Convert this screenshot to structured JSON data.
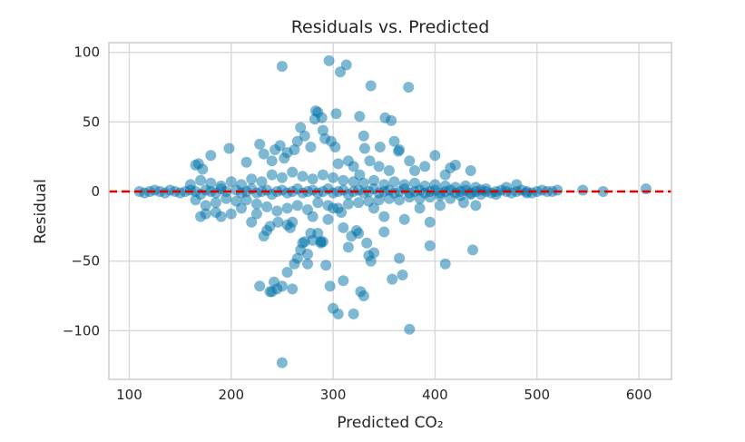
{
  "chart_data": {
    "type": "scatter",
    "title": "Residuals vs. Predicted",
    "xlabel": "Predicted CO₂",
    "ylabel": "Residual",
    "xlim": [
      80,
      632
    ],
    "ylim": [
      -135,
      107
    ],
    "xticks": [
      100,
      200,
      300,
      400,
      500,
      600
    ],
    "xtick_labels": [
      "100",
      "200",
      "300",
      "400",
      "500",
      "600"
    ],
    "yticks": [
      -100,
      -50,
      0,
      50,
      100
    ],
    "ytick_labels": [
      "−100",
      "−50",
      "0",
      "50",
      "100"
    ],
    "grid": true,
    "point_color": "#0072a8",
    "point_opacity": 0.5,
    "reference_line": {
      "y": 0,
      "color": "#e00000",
      "style": "dashed"
    },
    "points": [
      [
        110,
        0
      ],
      [
        115,
        -1
      ],
      [
        120,
        0
      ],
      [
        125,
        1
      ],
      [
        130,
        0
      ],
      [
        135,
        -1
      ],
      [
        140,
        1
      ],
      [
        145,
        0
      ],
      [
        150,
        -1
      ],
      [
        155,
        0
      ],
      [
        160,
        1
      ],
      [
        165,
        0
      ],
      [
        170,
        -2
      ],
      [
        175,
        1
      ],
      [
        180,
        0
      ],
      [
        185,
        -1
      ],
      [
        190,
        2
      ],
      [
        195,
        0
      ],
      [
        205,
        1
      ],
      [
        210,
        -1
      ],
      [
        215,
        0
      ],
      [
        220,
        2
      ],
      [
        225,
        -1
      ],
      [
        230,
        0
      ],
      [
        235,
        1
      ],
      [
        240,
        -2
      ],
      [
        245,
        0
      ],
      [
        250,
        1
      ],
      [
        255,
        -1
      ],
      [
        260,
        0
      ],
      [
        265,
        2
      ],
      [
        270,
        -1
      ],
      [
        275,
        0
      ],
      [
        280,
        1
      ],
      [
        285,
        -1
      ],
      [
        290,
        0
      ],
      [
        295,
        2
      ],
      [
        300,
        -1
      ],
      [
        305,
        0
      ],
      [
        310,
        1
      ],
      [
        315,
        -2
      ],
      [
        320,
        0
      ],
      [
        325,
        1
      ],
      [
        330,
        -1
      ],
      [
        335,
        0
      ],
      [
        340,
        2
      ],
      [
        345,
        -1
      ],
      [
        350,
        0
      ],
      [
        355,
        1
      ],
      [
        360,
        -1
      ],
      [
        365,
        0
      ],
      [
        370,
        2
      ],
      [
        375,
        -1
      ],
      [
        380,
        0
      ],
      [
        385,
        1
      ],
      [
        390,
        -1
      ],
      [
        395,
        0
      ],
      [
        400,
        1
      ],
      [
        405,
        -1
      ],
      [
        410,
        0
      ],
      [
        415,
        1
      ],
      [
        420,
        -1
      ],
      [
        425,
        0
      ],
      [
        430,
        1
      ],
      [
        435,
        -1
      ],
      [
        440,
        0
      ],
      [
        445,
        1
      ],
      [
        450,
        0
      ],
      [
        455,
        -1
      ],
      [
        460,
        0
      ],
      [
        465,
        1
      ],
      [
        470,
        0
      ],
      [
        475,
        -1
      ],
      [
        480,
        0
      ],
      [
        485,
        1
      ],
      [
        490,
        0
      ],
      [
        495,
        -1
      ],
      [
        500,
        0
      ],
      [
        505,
        1
      ],
      [
        510,
        0
      ],
      [
        515,
        0
      ],
      [
        520,
        1
      ],
      [
        545,
        1
      ],
      [
        565,
        0
      ],
      [
        607,
        2
      ],
      [
        160,
        5
      ],
      [
        165,
        -6
      ],
      [
        170,
        8
      ],
      [
        175,
        -10
      ],
      [
        180,
        6
      ],
      [
        185,
        -8
      ],
      [
        190,
        4
      ],
      [
        195,
        -5
      ],
      [
        200,
        7
      ],
      [
        205,
        -7
      ],
      [
        210,
        5
      ],
      [
        215,
        -6
      ],
      [
        220,
        9
      ],
      [
        225,
        -9
      ],
      [
        230,
        7
      ],
      [
        235,
        -11
      ],
      [
        240,
        12
      ],
      [
        245,
        -14
      ],
      [
        250,
        10
      ],
      [
        255,
        -12
      ],
      [
        260,
        14
      ],
      [
        265,
        -10
      ],
      [
        270,
        11
      ],
      [
        275,
        -13
      ],
      [
        280,
        9
      ],
      [
        285,
        -8
      ],
      [
        290,
        12
      ],
      [
        295,
        -10
      ],
      [
        300,
        10
      ],
      [
        305,
        -12
      ],
      [
        310,
        8
      ],
      [
        315,
        -9
      ],
      [
        320,
        7
      ],
      [
        325,
        -8
      ],
      [
        330,
        6
      ],
      [
        335,
        -7
      ],
      [
        340,
        8
      ],
      [
        345,
        -6
      ],
      [
        350,
        5
      ],
      [
        355,
        -5
      ],
      [
        360,
        7
      ],
      [
        365,
        -6
      ],
      [
        370,
        5
      ],
      [
        375,
        -4
      ],
      [
        380,
        6
      ],
      [
        385,
        -5
      ],
      [
        390,
        4
      ],
      [
        395,
        -4
      ],
      [
        400,
        5
      ],
      [
        405,
        -3
      ],
      [
        410,
        4
      ],
      [
        415,
        -5
      ],
      [
        420,
        3
      ],
      [
        425,
        -3
      ],
      [
        430,
        4
      ],
      [
        435,
        -2
      ],
      [
        440,
        3
      ],
      [
        445,
        -2
      ],
      [
        450,
        2
      ],
      [
        460,
        -2
      ],
      [
        470,
        3
      ],
      [
        480,
        5
      ],
      [
        490,
        -1
      ],
      [
        165,
        19
      ],
      [
        168,
        20
      ],
      [
        172,
        16
      ],
      [
        175,
        -16
      ],
      [
        170,
        -18
      ],
      [
        180,
        26
      ],
      [
        185,
        -15
      ],
      [
        190,
        -18
      ],
      [
        198,
        31
      ],
      [
        200,
        -16
      ],
      [
        210,
        -12
      ],
      [
        215,
        21
      ],
      [
        220,
        -22
      ],
      [
        225,
        -16
      ],
      [
        228,
        34
      ],
      [
        232,
        27
      ],
      [
        235,
        -28
      ],
      [
        238,
        -25
      ],
      [
        240,
        22
      ],
      [
        243,
        30
      ],
      [
        246,
        -22
      ],
      [
        248,
        33
      ],
      [
        252,
        24
      ],
      [
        255,
        28
      ],
      [
        258,
        -26
      ],
      [
        262,
        30
      ],
      [
        265,
        36
      ],
      [
        268,
        46
      ],
      [
        270,
        -37
      ],
      [
        272,
        40
      ],
      [
        275,
        -45
      ],
      [
        278,
        32
      ],
      [
        280,
        -35
      ],
      [
        282,
        52
      ],
      [
        285,
        57
      ],
      [
        288,
        -36
      ],
      [
        290,
        44
      ],
      [
        292,
        38
      ],
      [
        295,
        -20
      ],
      [
        298,
        36
      ],
      [
        300,
        -12
      ],
      [
        302,
        32
      ],
      [
        305,
        20
      ],
      [
        308,
        -15
      ],
      [
        310,
        -26
      ],
      [
        315,
        22
      ],
      [
        318,
        -32
      ],
      [
        320,
        18
      ],
      [
        323,
        -28
      ],
      [
        326,
        12
      ],
      [
        330,
        40
      ],
      [
        333,
        -37
      ],
      [
        336,
        22
      ],
      [
        340,
        -12
      ],
      [
        345,
        18
      ],
      [
        350,
        -18
      ],
      [
        355,
        15
      ],
      [
        360,
        36
      ],
      [
        365,
        30
      ],
      [
        370,
        -20
      ],
      [
        375,
        22
      ],
      [
        380,
        15
      ],
      [
        385,
        -12
      ],
      [
        390,
        18
      ],
      [
        395,
        -22
      ],
      [
        400,
        26
      ],
      [
        405,
        -10
      ],
      [
        410,
        12
      ],
      [
        415,
        17
      ],
      [
        420,
        19
      ],
      [
        428,
        -8
      ],
      [
        435,
        15
      ],
      [
        440,
        -10
      ],
      [
        250,
        90
      ],
      [
        296,
        94
      ],
      [
        307,
        86
      ],
      [
        313,
        91
      ],
      [
        337,
        76
      ],
      [
        374,
        75
      ],
      [
        289,
        53
      ],
      [
        283,
        58
      ],
      [
        303,
        56
      ],
      [
        326,
        54
      ],
      [
        351,
        53
      ],
      [
        357,
        51
      ],
      [
        346,
        32
      ],
      [
        364,
        29
      ],
      [
        331,
        31
      ],
      [
        228,
        -68
      ],
      [
        238,
        -72
      ],
      [
        242,
        -65
      ],
      [
        245,
        -70
      ],
      [
        250,
        -68
      ],
      [
        255,
        -58
      ],
      [
        260,
        -70
      ],
      [
        262,
        -52
      ],
      [
        265,
        -48
      ],
      [
        268,
        -42
      ],
      [
        272,
        -36
      ],
      [
        275,
        -52
      ],
      [
        280,
        -18
      ],
      [
        285,
        -30
      ],
      [
        288,
        -37
      ],
      [
        290,
        -36
      ],
      [
        293,
        -53
      ],
      [
        297,
        -68
      ],
      [
        300,
        -84
      ],
      [
        305,
        -88
      ],
      [
        310,
        -64
      ],
      [
        320,
        -88
      ],
      [
        327,
        -72
      ],
      [
        330,
        -75
      ],
      [
        335,
        -46
      ],
      [
        337,
        -50
      ],
      [
        340,
        -44
      ],
      [
        350,
        -29
      ],
      [
        358,
        -63
      ],
      [
        365,
        -48
      ],
      [
        368,
        -60
      ],
      [
        375,
        -99
      ],
      [
        395,
        -39
      ],
      [
        410,
        -52
      ],
      [
        437,
        -42
      ],
      [
        250,
        -123
      ],
      [
        240,
        -72
      ],
      [
        232,
        -32
      ],
      [
        255,
        -24
      ],
      [
        260,
        -22
      ],
      [
        278,
        -30
      ],
      [
        315,
        -40
      ],
      [
        325,
        -30
      ]
    ]
  }
}
